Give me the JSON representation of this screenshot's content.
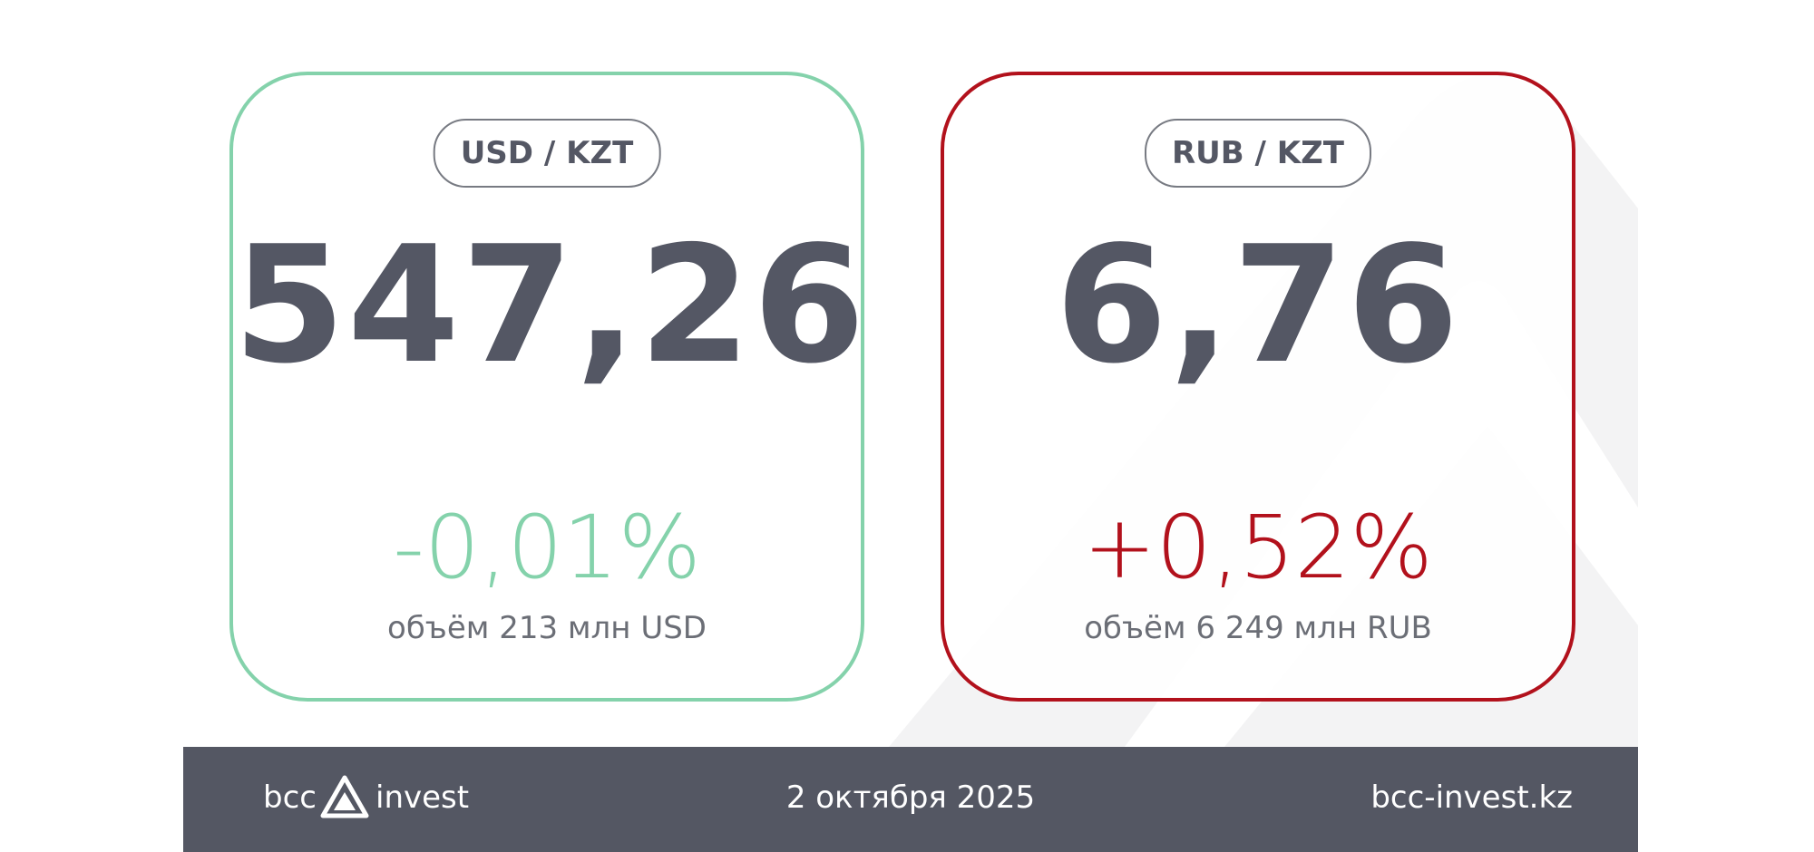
{
  "cards": [
    {
      "pair": "USD / KZT",
      "rate": "547,26",
      "change": "-0,01%",
      "volume": "объём 213 млн USD"
    },
    {
      "pair": "RUB / KZT",
      "rate": "6,76",
      "change": "+0,52%",
      "volume": "объём 6 249 млн RUB"
    }
  ],
  "footer": {
    "logo_left": "bcc",
    "logo_right": "invest",
    "date": "2 октября 2025",
    "site": "bcc-invest.kz"
  }
}
